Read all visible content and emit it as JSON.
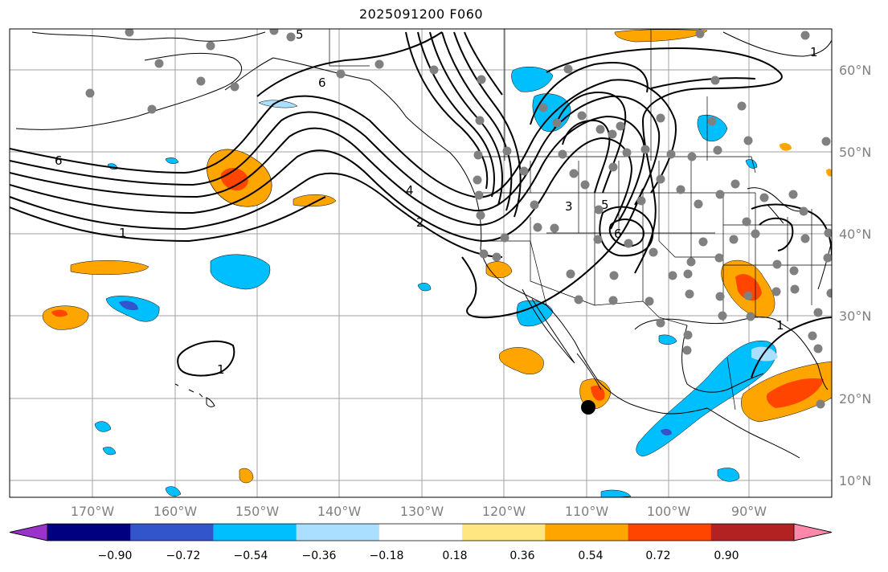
{
  "title": "2025091200 F060",
  "map": {
    "lon_labels": [
      "170°W",
      "160°W",
      "150°W",
      "140°W",
      "130°W",
      "120°W",
      "110°W",
      "100°W",
      "90°W"
    ],
    "lat_labels": [
      "60°N",
      "50°N",
      "40°N",
      "30°N",
      "20°N",
      "10°N"
    ],
    "contour_labels": [
      "5",
      "6",
      "6",
      "4",
      "2",
      "1",
      "1",
      "3",
      "5",
      "6",
      "1",
      "1"
    ],
    "gridline_color": "#a0a0a0",
    "coast_color": "#000000",
    "station_color": "#808080",
    "point_marker_color": "#000000"
  },
  "colorbar": {
    "colors": [
      "#9933cc",
      "#000080",
      "#3355cc",
      "#00bfff",
      "#aadfff",
      "#ffffff",
      "#ffe680",
      "#ffa500",
      "#ff4500",
      "#b22222",
      "#ff88aa"
    ],
    "ticks": [
      "−0.90",
      "−0.72",
      "−0.54",
      "−0.36",
      "−0.18",
      "0.18",
      "0.36",
      "0.54",
      "0.72",
      "0.90"
    ]
  }
}
